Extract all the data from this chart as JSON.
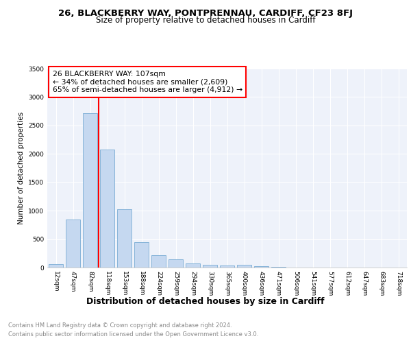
{
  "title1": "26, BLACKBERRY WAY, PONTPRENNAU, CARDIFF, CF23 8FJ",
  "title2": "Size of property relative to detached houses in Cardiff",
  "xlabel": "Distribution of detached houses by size in Cardiff",
  "ylabel": "Number of detached properties",
  "categories": [
    "12sqm",
    "47sqm",
    "82sqm",
    "118sqm",
    "153sqm",
    "188sqm",
    "224sqm",
    "259sqm",
    "294sqm",
    "330sqm",
    "365sqm",
    "400sqm",
    "436sqm",
    "471sqm",
    "506sqm",
    "541sqm",
    "577sqm",
    "612sqm",
    "647sqm",
    "683sqm",
    "718sqm"
  ],
  "values": [
    60,
    850,
    2720,
    2070,
    1020,
    450,
    220,
    150,
    75,
    45,
    35,
    50,
    20,
    10,
    5,
    3,
    2,
    1,
    1,
    1,
    1
  ],
  "bar_color": "#c5d8f0",
  "bar_edgecolor": "#7aadd4",
  "vline_color": "red",
  "vline_pos": 2.5,
  "annotation_title": "26 BLACKBERRY WAY: 107sqm",
  "annotation_line2": "← 34% of detached houses are smaller (2,609)",
  "annotation_line3": "65% of semi-detached houses are larger (4,912) →",
  "annotation_box_edgecolor": "red",
  "annotation_box_facecolor": "white",
  "ylim": [
    0,
    3500
  ],
  "yticks": [
    0,
    500,
    1000,
    1500,
    2000,
    2500,
    3000,
    3500
  ],
  "footnote1": "Contains HM Land Registry data © Crown copyright and database right 2024.",
  "footnote2": "Contains public sector information licensed under the Open Government Licence v3.0.",
  "bg_color": "#eef2fa",
  "grid_color": "white",
  "title1_fontsize": 9.5,
  "title2_fontsize": 8.5,
  "xlabel_fontsize": 9,
  "ylabel_fontsize": 7.5,
  "tick_fontsize": 6.5,
  "footnote_fontsize": 6,
  "footnote_color": "#888888"
}
